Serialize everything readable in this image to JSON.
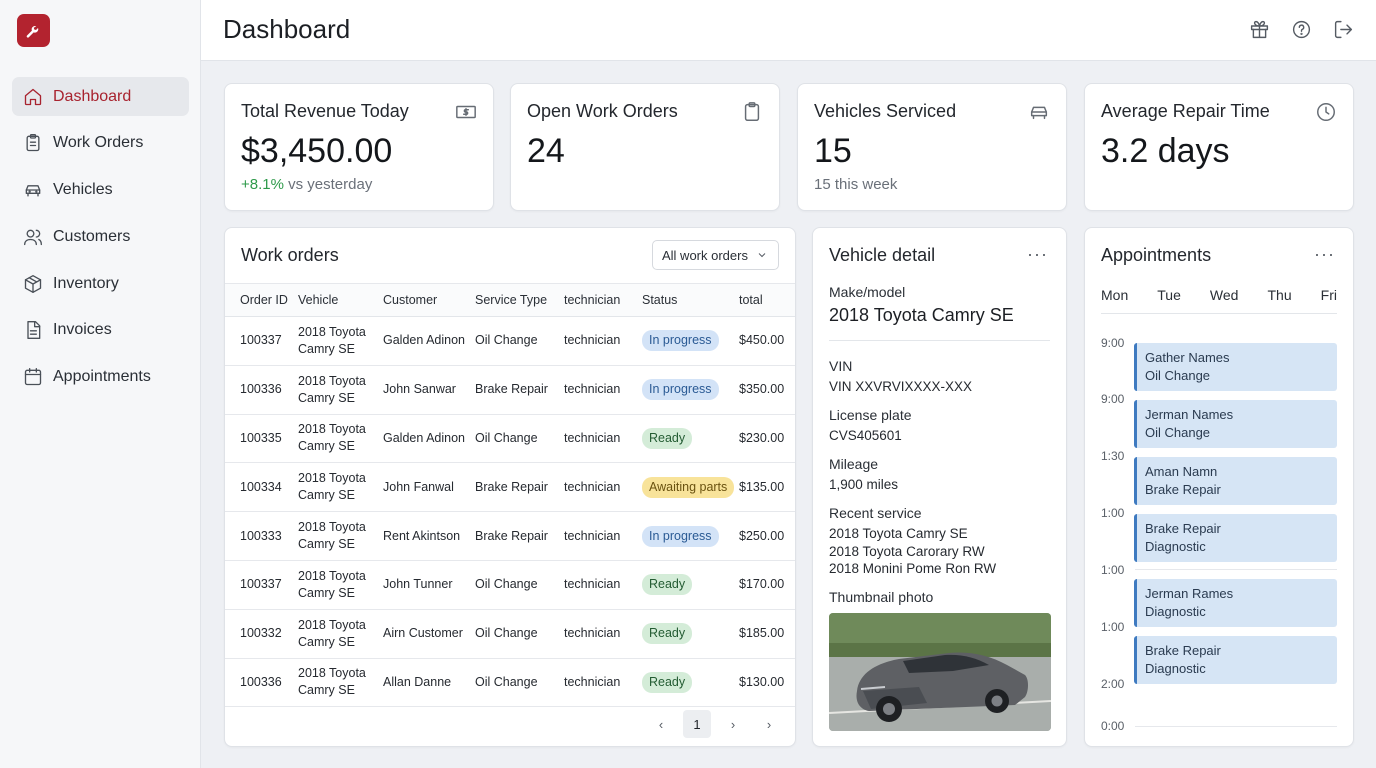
{
  "brand": {
    "accent": "#b3232f",
    "logo_icon": "wrench-icon"
  },
  "sidebar": {
    "items": [
      {
        "label": "Dashboard",
        "icon": "home-icon",
        "active": true
      },
      {
        "label": "Work Orders",
        "icon": "clipboard-icon"
      },
      {
        "label": "Vehicles",
        "icon": "car-icon"
      },
      {
        "label": "Customers",
        "icon": "users-icon"
      },
      {
        "label": "Inventory",
        "icon": "box-icon"
      },
      {
        "label": "Invoices",
        "icon": "file-icon"
      },
      {
        "label": "Appointments",
        "icon": "calendar-icon"
      }
    ]
  },
  "header": {
    "title": "Dashboard",
    "icons": [
      "gift-icon",
      "help-icon",
      "logout-icon"
    ]
  },
  "kpis": [
    {
      "title": "Total Revenue Today",
      "value": "$3,450.00",
      "sub_positive": "+8.1%",
      "sub": " vs yesterday",
      "icon": "cash-icon"
    },
    {
      "title": "Open Work Orders",
      "value": "24",
      "icon": "clipboard-icon"
    },
    {
      "title": "Vehicles Serviced",
      "value": "15",
      "sub": "15 this week",
      "icon": "car-icon"
    },
    {
      "title": "Average Repair Time",
      "value": "3.2 days",
      "icon": "clock-icon"
    }
  ],
  "work_orders": {
    "title": "Work orders",
    "filter": "All work orders",
    "columns": [
      "Order ID",
      "Vehicle",
      "Customer",
      "Service Type",
      "technician",
      "Status",
      "total"
    ],
    "rows": [
      {
        "id": "100337",
        "vehicle_l1": "2018 Toyota",
        "vehicle_l2": "Camry SE",
        "customer": "Galden Adinon",
        "service": "Oil Change",
        "tech": "technician",
        "status": "In progress",
        "status_kind": "progress",
        "total": "$450.00"
      },
      {
        "id": "100336",
        "vehicle_l1": "2018 Toyota",
        "vehicle_l2": "Camry SE",
        "customer": "John Sanwar",
        "service": "Brake Repair",
        "tech": "technician",
        "status": "In progress",
        "status_kind": "progress",
        "total": "$350.00"
      },
      {
        "id": "100335",
        "vehicle_l1": "2018 Toyota",
        "vehicle_l2": "Camry SE",
        "customer": "Galden Adinon",
        "service": "Oil Change",
        "tech": "technician",
        "status": "Ready",
        "status_kind": "ready",
        "total": "$230.00"
      },
      {
        "id": "100334",
        "vehicle_l1": "2018 Toyota",
        "vehicle_l2": "Camry SE",
        "customer": "John Fanwal",
        "service": "Brake Repair",
        "tech": "technician",
        "status": "Awaiting parts",
        "status_kind": "awaiting",
        "total": "$135.00"
      },
      {
        "id": "100333",
        "vehicle_l1": "2018 Toyota",
        "vehicle_l2": "Camry SE",
        "customer": "Rent Akintson",
        "service": "Brake Repair",
        "tech": "technician",
        "status": "In progress",
        "status_kind": "progress",
        "total": "$250.00"
      },
      {
        "id": "100337",
        "vehicle_l1": "2018 Toyota",
        "vehicle_l2": "Camry SE",
        "customer": "John Tunner",
        "service": "Oil Change",
        "tech": "technician",
        "status": "Ready",
        "status_kind": "ready",
        "total": "$170.00"
      },
      {
        "id": "100332",
        "vehicle_l1": "2018 Toyota",
        "vehicle_l2": "Camry SE",
        "customer": "Airn Customer",
        "service": "Oil Change",
        "tech": "technician",
        "status": "Ready",
        "status_kind": "ready",
        "total": "$185.00"
      },
      {
        "id": "100336",
        "vehicle_l1": "2018 Toyota",
        "vehicle_l2": "Camry SE",
        "customer": "Allan Danne",
        "service": "Oil Change",
        "tech": "technician",
        "status": "Ready",
        "status_kind": "ready",
        "total": "$130.00"
      }
    ],
    "pager": {
      "prev": "‹",
      "current": "1",
      "next": "›",
      "last": "›"
    }
  },
  "vehicle_detail": {
    "title": "Vehicle detail",
    "make_label": "Make/model",
    "make_value": "2018 Toyota Camry SE",
    "vin_label": "VIN",
    "vin_value": "VIN XXVRVIXXXX-XXX",
    "plate_label": "License plate",
    "plate_value": "CVS405601",
    "mileage_label": "Mileage",
    "mileage_value": "1,900 miles",
    "recent_label": "Recent service",
    "recent": [
      "2018 Toyota Camry SE",
      "2018 Toyota Carorary RW",
      "2018 Monini Pome Ron RW"
    ],
    "photo_label": "Thumbnail photo"
  },
  "appointments": {
    "title": "Appointments",
    "days": [
      "Mon",
      "Tue",
      "Wed",
      "Thu",
      "Fri"
    ],
    "times": [
      "9:00",
      "9:00",
      "1:30",
      "1:00",
      "1:00",
      "1:00",
      "2:00",
      "0:00"
    ],
    "events": [
      {
        "l1": "Gather Names",
        "l2": "Oil Change"
      },
      {
        "l1": "Jerman Names",
        "l2": "Oil Change"
      },
      {
        "l1": "Aman Namn",
        "l2": "Brake Repair"
      },
      {
        "l1": "Brake Repair",
        "l2": "Diagnostic"
      },
      {
        "l1": "Jerman Rames",
        "l2": "Diagnostic"
      },
      {
        "l1": "Brake Repair",
        "l2": "Diagnostic"
      }
    ]
  }
}
